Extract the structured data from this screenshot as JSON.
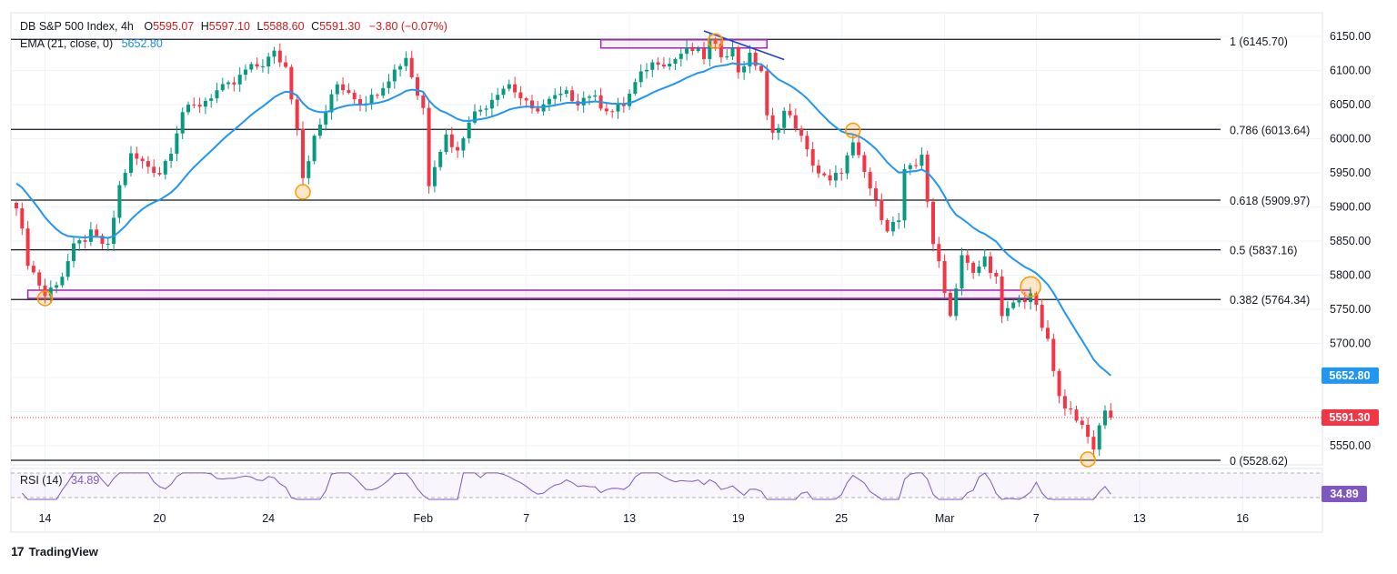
{
  "legend": {
    "symbol": "DB S&P 500 Index, 4h",
    "ohlc": {
      "open_label": "O",
      "open": "5595.07",
      "high_label": "H",
      "high": "5597.10",
      "low_label": "L",
      "low": "5588.60",
      "close_label": "C",
      "close": "5591.30",
      "change": "−3.80 (−0.07%)"
    },
    "ema_label": "EMA (21, close, 0)",
    "ema_value": "5652.80",
    "rsi_label": "RSI (14)",
    "rsi_value": "34.89"
  },
  "footer": {
    "brand": "TradingView",
    "logo": "17"
  },
  "colors": {
    "up": "#089981",
    "down": "#f23645",
    "ema": "#2196f3",
    "rsi": "#7e57c2",
    "fib": "#131722",
    "box": "#9c27b0",
    "circle": "#ff9800",
    "trend": "#1e40c9",
    "price_line": "#f23645"
  },
  "chart_data": {
    "type": "candlestick",
    "timeframe": "4h",
    "y_axis": {
      "ticks": [
        5550,
        5600,
        5650,
        5700,
        5750,
        5800,
        5850,
        5900,
        5950,
        6000,
        6050,
        6100,
        6150
      ],
      "tick_labels": [
        "5550.00",
        "",
        "",
        "5700.00",
        "5750.00",
        "5800.00",
        "5850.00",
        "5900.00",
        "5950.00",
        "6000.00",
        "6050.00",
        "6100.00",
        "6150.00"
      ],
      "range": [
        5510,
        6170
      ]
    },
    "x_axis": {
      "labels": [
        "14",
        "20",
        "24",
        "Feb",
        "7",
        "13",
        "19",
        "25",
        "Mar",
        "7",
        "13",
        "16"
      ],
      "label_index": [
        5,
        25,
        44,
        71,
        89,
        107,
        126,
        144,
        162,
        178,
        196,
        214
      ],
      "last_index": 191
    },
    "last_price": {
      "value": 5591.3,
      "label": "5591.30"
    },
    "ema": {
      "value": 5652.8,
      "label": "5652.80",
      "length": 21
    },
    "fibonacci": [
      {
        "level": "1",
        "price": 6145.7,
        "label": "1 (6145.70)"
      },
      {
        "level": "0.786",
        "price": 6013.64,
        "label": "0.786 (6013.64)"
      },
      {
        "level": "0.618",
        "price": 5909.97,
        "label": "0.618 (5909.97)"
      },
      {
        "level": "0.5",
        "price": 5837.16,
        "label": "0.5 (5837.16)"
      },
      {
        "level": "0.382",
        "price": 5764.34,
        "label": "0.382 (5764.34)"
      },
      {
        "level": "0",
        "price": 5528.62,
        "label": "0 (5528.62)"
      }
    ],
    "rsi": {
      "value": 34.89,
      "label": "34.89",
      "upper": 70,
      "lower": 30
    },
    "path": [
      [
        0,
        5905
      ],
      [
        2,
        5820
      ],
      [
        5,
        5770
      ],
      [
        8,
        5800
      ],
      [
        10,
        5840
      ],
      [
        13,
        5860
      ],
      [
        16,
        5840
      ],
      [
        18,
        5930
      ],
      [
        20,
        5975
      ],
      [
        23,
        5960
      ],
      [
        25,
        5950
      ],
      [
        27,
        5985
      ],
      [
        29,
        6040
      ],
      [
        32,
        6050
      ],
      [
        35,
        6070
      ],
      [
        38,
        6080
      ],
      [
        40,
        6100
      ],
      [
        43,
        6110
      ],
      [
        45,
        6125
      ],
      [
        47,
        6105
      ],
      [
        49,
        6020
      ],
      [
        50,
        5945
      ],
      [
        52,
        6000
      ],
      [
        54,
        6040
      ],
      [
        56,
        6080
      ],
      [
        58,
        6070
      ],
      [
        60,
        6055
      ],
      [
        62,
        6060
      ],
      [
        64,
        6080
      ],
      [
        66,
        6100
      ],
      [
        68,
        6120
      ],
      [
        70,
        6065
      ],
      [
        71,
        6045
      ],
      [
        72,
        5935
      ],
      [
        73,
        5965
      ],
      [
        75,
        6005
      ],
      [
        77,
        5980
      ],
      [
        79,
        6030
      ],
      [
        82,
        6050
      ],
      [
        84,
        6070
      ],
      [
        86,
        6080
      ],
      [
        88,
        6060
      ],
      [
        90,
        6040
      ],
      [
        92,
        6050
      ],
      [
        94,
        6060
      ],
      [
        96,
        6065
      ],
      [
        98,
        6055
      ],
      [
        100,
        6065
      ],
      [
        102,
        6050
      ],
      [
        104,
        6040
      ],
      [
        106,
        6050
      ],
      [
        108,
        6080
      ],
      [
        110,
        6105
      ],
      [
        112,
        6115
      ],
      [
        114,
        6110
      ],
      [
        116,
        6125
      ],
      [
        118,
        6130
      ],
      [
        120,
        6120
      ],
      [
        121,
        6140
      ],
      [
        123,
        6125
      ],
      [
        125,
        6130
      ],
      [
        126,
        6100
      ],
      [
        128,
        6120
      ],
      [
        130,
        6100
      ],
      [
        131,
        6030
      ],
      [
        132,
        6005
      ],
      [
        134,
        6040
      ],
      [
        136,
        6020
      ],
      [
        138,
        5980
      ],
      [
        140,
        5950
      ],
      [
        142,
        5935
      ],
      [
        144,
        5955
      ],
      [
        146,
        5990
      ],
      [
        148,
        5950
      ],
      [
        150,
        5905
      ],
      [
        152,
        5870
      ],
      [
        154,
        5880
      ],
      [
        155,
        5950
      ],
      [
        157,
        5960
      ],
      [
        158,
        5980
      ],
      [
        160,
        5840
      ],
      [
        161,
        5820
      ],
      [
        163,
        5740
      ],
      [
        165,
        5830
      ],
      [
        167,
        5800
      ],
      [
        169,
        5825
      ],
      [
        171,
        5795
      ],
      [
        172,
        5735
      ],
      [
        174,
        5760
      ],
      [
        176,
        5765
      ],
      [
        177,
        5775
      ],
      [
        178,
        5750
      ],
      [
        180,
        5700
      ],
      [
        182,
        5620
      ],
      [
        183,
        5600
      ],
      [
        184,
        5610
      ],
      [
        186,
        5575
      ],
      [
        187,
        5560
      ],
      [
        188,
        5545
      ],
      [
        189,
        5585
      ],
      [
        190,
        5600
      ],
      [
        191,
        5591.3
      ]
    ],
    "annotations": {
      "boxes": [
        {
          "i1": 2,
          "i2": 177,
          "p_top": 5778,
          "p_bot": 5766
        },
        {
          "i1": 102,
          "i2": 131,
          "p_top": 6145,
          "p_bot": 6133
        }
      ],
      "circles": [
        {
          "i": 5,
          "price": 5766
        },
        {
          "i": 50,
          "price": 5922
        },
        {
          "i": 122,
          "price": 6143
        },
        {
          "i": 146,
          "price": 6012
        },
        {
          "i": 177,
          "price": 5783
        },
        {
          "i": 187,
          "price": 5530
        }
      ],
      "trendline": {
        "i1": 120,
        "p1": 6158,
        "i2": 134,
        "p2": 6116
      }
    }
  }
}
